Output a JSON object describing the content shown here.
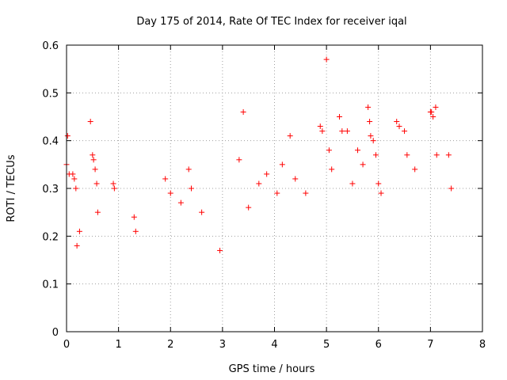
{
  "chart_data": {
    "type": "scatter",
    "title": "Day 175 of 2014, Rate Of TEC Index for receiver iqal",
    "xlabel": "GPS time / hours",
    "ylabel": "ROTI / TECUs",
    "xlim": [
      0,
      8
    ],
    "ylim": [
      0,
      0.6
    ],
    "xticks": [
      0,
      1,
      2,
      3,
      4,
      5,
      6,
      7,
      8
    ],
    "yticks": [
      0,
      0.1,
      0.2,
      0.3,
      0.4,
      0.5,
      0.6
    ],
    "xtick_labels": [
      "0",
      "1",
      "2",
      "3",
      "4",
      "5",
      "6",
      "7",
      "8"
    ],
    "ytick_labels": [
      "0",
      "0.1",
      "0.2",
      "0.3",
      "0.4",
      "0.5",
      "0.6"
    ],
    "grid": true,
    "marker": "+",
    "color": "#ff0000",
    "x_data_range": [
      0,
      7.5
    ],
    "series": [
      {
        "name": "ROTI",
        "points": [
          [
            0.02,
            0.41
          ],
          [
            0.0,
            0.35
          ],
          [
            0.05,
            0.33
          ],
          [
            0.12,
            0.33
          ],
          [
            0.15,
            0.32
          ],
          [
            0.18,
            0.3
          ],
          [
            0.46,
            0.44
          ],
          [
            0.5,
            0.37
          ],
          [
            0.52,
            0.36
          ],
          [
            0.55,
            0.34
          ],
          [
            0.58,
            0.31
          ],
          [
            0.9,
            0.31
          ],
          [
            0.92,
            0.3
          ],
          [
            0.2,
            0.18
          ],
          [
            0.25,
            0.21
          ],
          [
            0.6,
            0.25
          ],
          [
            1.3,
            0.24
          ],
          [
            1.33,
            0.21
          ],
          [
            1.9,
            0.32
          ],
          [
            2.0,
            0.29
          ],
          [
            2.35,
            0.34
          ],
          [
            2.4,
            0.3
          ],
          [
            2.2,
            0.27
          ],
          [
            2.6,
            0.25
          ],
          [
            2.95,
            0.17
          ],
          [
            3.4,
            0.46
          ],
          [
            3.32,
            0.36
          ],
          [
            3.5,
            0.26
          ],
          [
            3.7,
            0.31
          ],
          [
            3.85,
            0.33
          ],
          [
            4.15,
            0.35
          ],
          [
            4.3,
            0.41
          ],
          [
            4.05,
            0.29
          ],
          [
            4.4,
            0.32
          ],
          [
            4.6,
            0.29
          ],
          [
            4.88,
            0.43
          ],
          [
            4.92,
            0.42
          ],
          [
            5.0,
            0.57
          ],
          [
            5.05,
            0.38
          ],
          [
            5.1,
            0.34
          ],
          [
            5.25,
            0.45
          ],
          [
            5.3,
            0.42
          ],
          [
            5.4,
            0.42
          ],
          [
            5.5,
            0.31
          ],
          [
            5.6,
            0.38
          ],
          [
            5.7,
            0.35
          ],
          [
            5.8,
            0.47
          ],
          [
            5.83,
            0.44
          ],
          [
            5.85,
            0.41
          ],
          [
            5.9,
            0.4
          ],
          [
            5.95,
            0.37
          ],
          [
            6.0,
            0.31
          ],
          [
            6.05,
            0.29
          ],
          [
            6.35,
            0.44
          ],
          [
            6.4,
            0.43
          ],
          [
            6.5,
            0.42
          ],
          [
            6.55,
            0.37
          ],
          [
            6.7,
            0.34
          ],
          [
            7.0,
            0.46
          ],
          [
            7.02,
            0.46
          ],
          [
            7.05,
            0.45
          ],
          [
            7.1,
            0.47
          ],
          [
            7.12,
            0.37
          ],
          [
            7.35,
            0.37
          ],
          [
            7.4,
            0.3
          ]
        ]
      }
    ]
  }
}
